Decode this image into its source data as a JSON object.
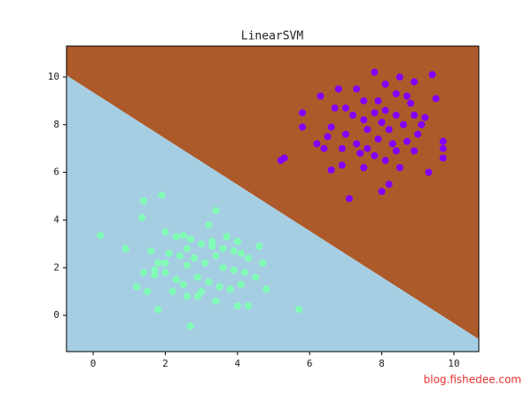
{
  "chart_data": {
    "type": "scatter",
    "title": "LinearSVM",
    "xlim": [
      -0.74,
      10.69
    ],
    "ylim": [
      -1.52,
      11.3
    ],
    "xticks": [
      0,
      2,
      4,
      6,
      8,
      10
    ],
    "yticks": [
      0,
      2,
      4,
      6,
      8,
      10
    ],
    "regions": {
      "boundary_x": [
        -0.74,
        10.69
      ],
      "boundary_y": [
        10.07,
        -1.0
      ],
      "colors": [
        "#ad5a2a",
        "#a6cee3"
      ]
    },
    "series": [
      {
        "color": "#80ffb4",
        "x": [
          0.2,
          0.9,
          1.4,
          1.35,
          1.9,
          1.2,
          1.5,
          1.8,
          2.7,
          5.7,
          4.8,
          4.6,
          4.7,
          4.0,
          4.3,
          3.4,
          2.6,
          2.9,
          3.4,
          3.2,
          2.0,
          2.3,
          2.5,
          2.7,
          3.0,
          3.3,
          3.6,
          3.9,
          4.1,
          4.3,
          1.6,
          1.8,
          2.1,
          2.4,
          2.6,
          2.8,
          3.1,
          3.4,
          3.6,
          3.9,
          4.2,
          4.5,
          1.4,
          1.7,
          2.0,
          2.3,
          2.5,
          2.9,
          3.2,
          3.5,
          3.8,
          4.1,
          3.0,
          2.2,
          3.3,
          2.0,
          3.7,
          4.0,
          1.7,
          2.6
        ],
        "y": [
          3.35,
          2.8,
          4.8,
          4.1,
          5.05,
          1.2,
          1.0,
          0.25,
          -0.45,
          0.25,
          1.1,
          2.9,
          2.2,
          0.4,
          0.4,
          0.6,
          0.8,
          0.8,
          4.4,
          3.8,
          3.5,
          3.3,
          3.35,
          3.2,
          3.0,
          3.1,
          2.8,
          2.7,
          2.6,
          2.4,
          2.7,
          2.2,
          2.6,
          2.5,
          2.1,
          2.4,
          2.2,
          2.5,
          2.0,
          1.9,
          1.8,
          1.6,
          1.8,
          1.7,
          1.8,
          1.5,
          1.3,
          1.6,
          1.4,
          1.2,
          1.1,
          1.3,
          1.0,
          1.0,
          2.9,
          2.2,
          3.3,
          3.1,
          1.9,
          2.8
        ]
      },
      {
        "color": "#8000ff",
        "x": [
          5.2,
          5.3,
          5.8,
          5.8,
          6.3,
          6.2,
          6.6,
          6.8,
          7.0,
          7.3,
          7.5,
          7.8,
          8.1,
          8.4,
          8.7,
          8.5,
          8.9,
          9.4,
          9.2,
          9.5,
          9.7,
          9.7,
          9.7,
          9.3,
          8.9,
          8.5,
          8.2,
          8.0,
          7.5,
          7.1,
          6.9,
          6.6,
          6.4,
          7.0,
          7.3,
          7.6,
          7.9,
          8.2,
          8.6,
          8.9,
          7.2,
          7.5,
          7.8,
          8.1,
          8.4,
          6.7,
          6.9,
          7.4,
          7.8,
          8.1,
          8.4,
          8.7,
          9.0,
          8.8,
          6.5,
          7.6,
          8.3,
          8.0,
          9.1,
          7.9
        ],
        "y": [
          6.5,
          6.6,
          8.5,
          7.9,
          9.2,
          7.2,
          7.9,
          9.5,
          8.7,
          9.5,
          9.0,
          10.2,
          9.7,
          9.3,
          9.2,
          10.0,
          9.8,
          10.1,
          8.3,
          9.1,
          7.3,
          7.0,
          6.6,
          6.0,
          6.9,
          6.2,
          5.5,
          5.2,
          6.2,
          4.9,
          6.3,
          6.1,
          7.0,
          7.6,
          7.2,
          7.8,
          7.4,
          7.8,
          8.0,
          8.4,
          8.4,
          8.2,
          8.5,
          8.6,
          8.4,
          8.7,
          7.0,
          6.8,
          6.7,
          6.5,
          6.9,
          7.3,
          7.6,
          8.9,
          7.5,
          7.0,
          7.2,
          8.1,
          8.0,
          9.0
        ]
      }
    ],
    "watermark": "blog.fishedee.com"
  }
}
